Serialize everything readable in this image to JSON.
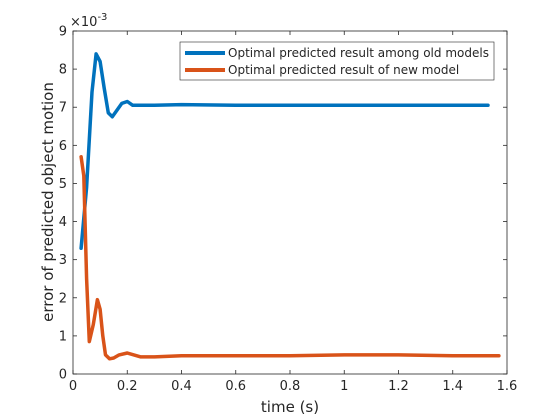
{
  "chart_data": {
    "type": "line",
    "title": "",
    "xlabel": "time (s)",
    "ylabel": "error of predicted object motion",
    "xlim": [
      0,
      1.6
    ],
    "ylim": [
      0,
      9
    ],
    "x_ticks": [
      "0",
      "0.2",
      "0.4",
      "0.6",
      "0.8",
      "1",
      "1.2",
      "1.4",
      "1.6"
    ],
    "y_ticks": [
      "0",
      "1",
      "2",
      "3",
      "4",
      "5",
      "6",
      "7",
      "8",
      "9"
    ],
    "y_exponent_label": "×10",
    "y_exponent_power": "-3",
    "grid": false,
    "legend_position": "top-right",
    "series": [
      {
        "name": "Optimal predicted result among old models",
        "color": "#0072BD",
        "x": [
          0.03,
          0.05,
          0.07,
          0.085,
          0.1,
          0.115,
          0.13,
          0.145,
          0.16,
          0.18,
          0.2,
          0.22,
          0.25,
          0.3,
          0.4,
          0.6,
          0.8,
          1.0,
          1.2,
          1.4,
          1.53
        ],
        "y": [
          3.3,
          4.9,
          7.4,
          8.4,
          8.2,
          7.5,
          6.85,
          6.75,
          6.9,
          7.1,
          7.15,
          7.05,
          7.05,
          7.05,
          7.07,
          7.05,
          7.05,
          7.05,
          7.05,
          7.05,
          7.05
        ]
      },
      {
        "name": "Optimal predicted result of new model",
        "color": "#D95319",
        "x": [
          0.03,
          0.04,
          0.05,
          0.06,
          0.075,
          0.09,
          0.1,
          0.11,
          0.12,
          0.135,
          0.15,
          0.17,
          0.2,
          0.25,
          0.3,
          0.4,
          0.6,
          0.8,
          1.0,
          1.2,
          1.4,
          1.57
        ],
        "y": [
          5.7,
          5.2,
          2.5,
          0.85,
          1.3,
          1.95,
          1.7,
          1.0,
          0.5,
          0.4,
          0.42,
          0.5,
          0.55,
          0.45,
          0.45,
          0.48,
          0.48,
          0.48,
          0.5,
          0.5,
          0.48,
          0.48
        ]
      }
    ]
  }
}
